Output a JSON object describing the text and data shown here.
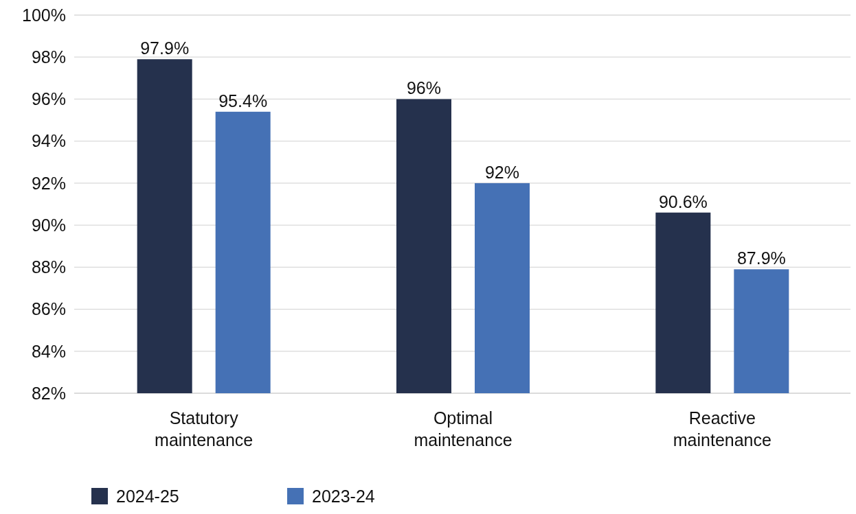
{
  "chart_data": {
    "type": "bar",
    "categories": [
      "Statutory maintenance",
      "Optimal maintenance",
      "Reactive maintenance"
    ],
    "series": [
      {
        "name": "2024-25",
        "color": "#25314d",
        "values": [
          97.9,
          96,
          90.6
        ],
        "value_labels": [
          "97.9%",
          "96%",
          "90.6%"
        ]
      },
      {
        "name": "2023-24",
        "color": "#4571b5",
        "values": [
          95.4,
          92,
          87.9
        ],
        "value_labels": [
          "95.4%",
          "92%",
          "87.9%"
        ]
      }
    ],
    "ylim": [
      82,
      100
    ],
    "yticks": [
      {
        "value": 82,
        "label": "82%"
      },
      {
        "value": 84,
        "label": "84%"
      },
      {
        "value": 86,
        "label": "86%"
      },
      {
        "value": 88,
        "label": "88%"
      },
      {
        "value": 90,
        "label": "90%"
      },
      {
        "value": 92,
        "label": "92%"
      },
      {
        "value": 94,
        "label": "94%"
      },
      {
        "value": 96,
        "label": "96%"
      },
      {
        "value": 98,
        "label": "98%"
      },
      {
        "value": 100,
        "label": "100%"
      }
    ],
    "grid": "y",
    "legend": "bottom left"
  }
}
